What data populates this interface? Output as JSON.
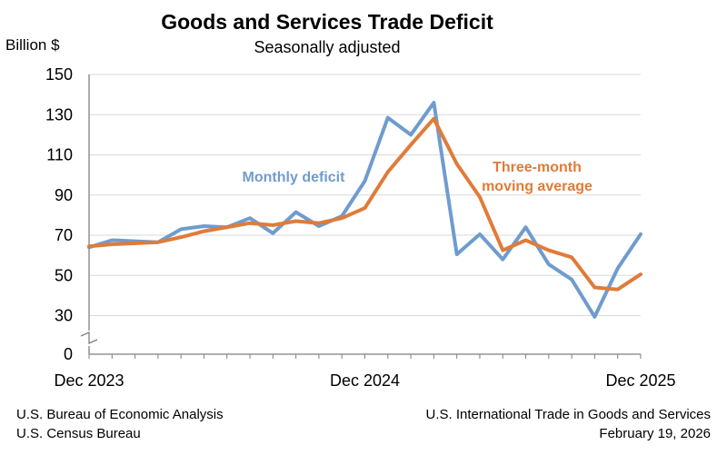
{
  "chart_data": {
    "type": "line",
    "title": "Goods and Services Trade Deficit",
    "subtitle": "Seasonally adjusted",
    "ylabel": "Billion $",
    "xlabel": "",
    "ylim": [
      0,
      150
    ],
    "yticks": [
      0,
      30,
      50,
      70,
      90,
      110,
      130,
      150
    ],
    "axis_break": true,
    "grid": true,
    "x": [
      "Dec 2023",
      "Jan 2024",
      "Feb 2024",
      "Mar 2024",
      "Apr 2024",
      "May 2024",
      "Jun 2024",
      "Jul 2024",
      "Aug 2024",
      "Sep 2024",
      "Oct 2024",
      "Nov 2024",
      "Dec 2024",
      "Jan 2025",
      "Feb 2025",
      "Mar 2025",
      "Apr 2025",
      "May 2025",
      "Jun 2025",
      "Jul 2025",
      "Aug 2025",
      "Sep 2025",
      "Oct 2025",
      "Nov 2025",
      "Dec 2025"
    ],
    "x_tick_labels": [
      {
        "index": 0,
        "label": "Dec 2023"
      },
      {
        "index": 12,
        "label": "Dec 2024"
      },
      {
        "index": 24,
        "label": "Dec 2025"
      }
    ],
    "series": [
      {
        "name": "Monthly deficit",
        "color": "#6f9ccf",
        "values": [
          64,
          67.5,
          67,
          66.5,
          73,
          74.5,
          74,
          78.5,
          71,
          81.5,
          74.5,
          79.5,
          97,
          128.5,
          120,
          136,
          60.5,
          70.5,
          58,
          74,
          55.5,
          48,
          29,
          53.5,
          70.5
        ]
      },
      {
        "name": "Three-month moving average",
        "label_lines": [
          "Three-month",
          "moving average"
        ],
        "color": "#e07b39",
        "values": [
          64.5,
          65.5,
          66,
          66.5,
          69,
          72,
          74,
          76,
          75,
          77,
          76,
          78.5,
          83.5,
          101.5,
          115,
          128,
          105.5,
          89,
          62.5,
          67.5,
          62.5,
          59,
          44,
          43,
          50.5
        ]
      }
    ],
    "x_tick_marks": [
      "",
      "",
      "",
      "",
      "",
      "",
      "",
      "",
      "",
      "",
      "",
      "",
      "",
      "",
      "",
      "",
      "",
      "",
      "",
      "",
      "",
      "",
      "",
      "",
      ""
    ]
  },
  "footer": {
    "left_line1": "U.S. Bureau of Economic Analysis",
    "left_line2": "U.S. Census Bureau",
    "right_line1": "U.S. International Trade in Goods and Services",
    "right_line2": "February 19, 2026"
  }
}
